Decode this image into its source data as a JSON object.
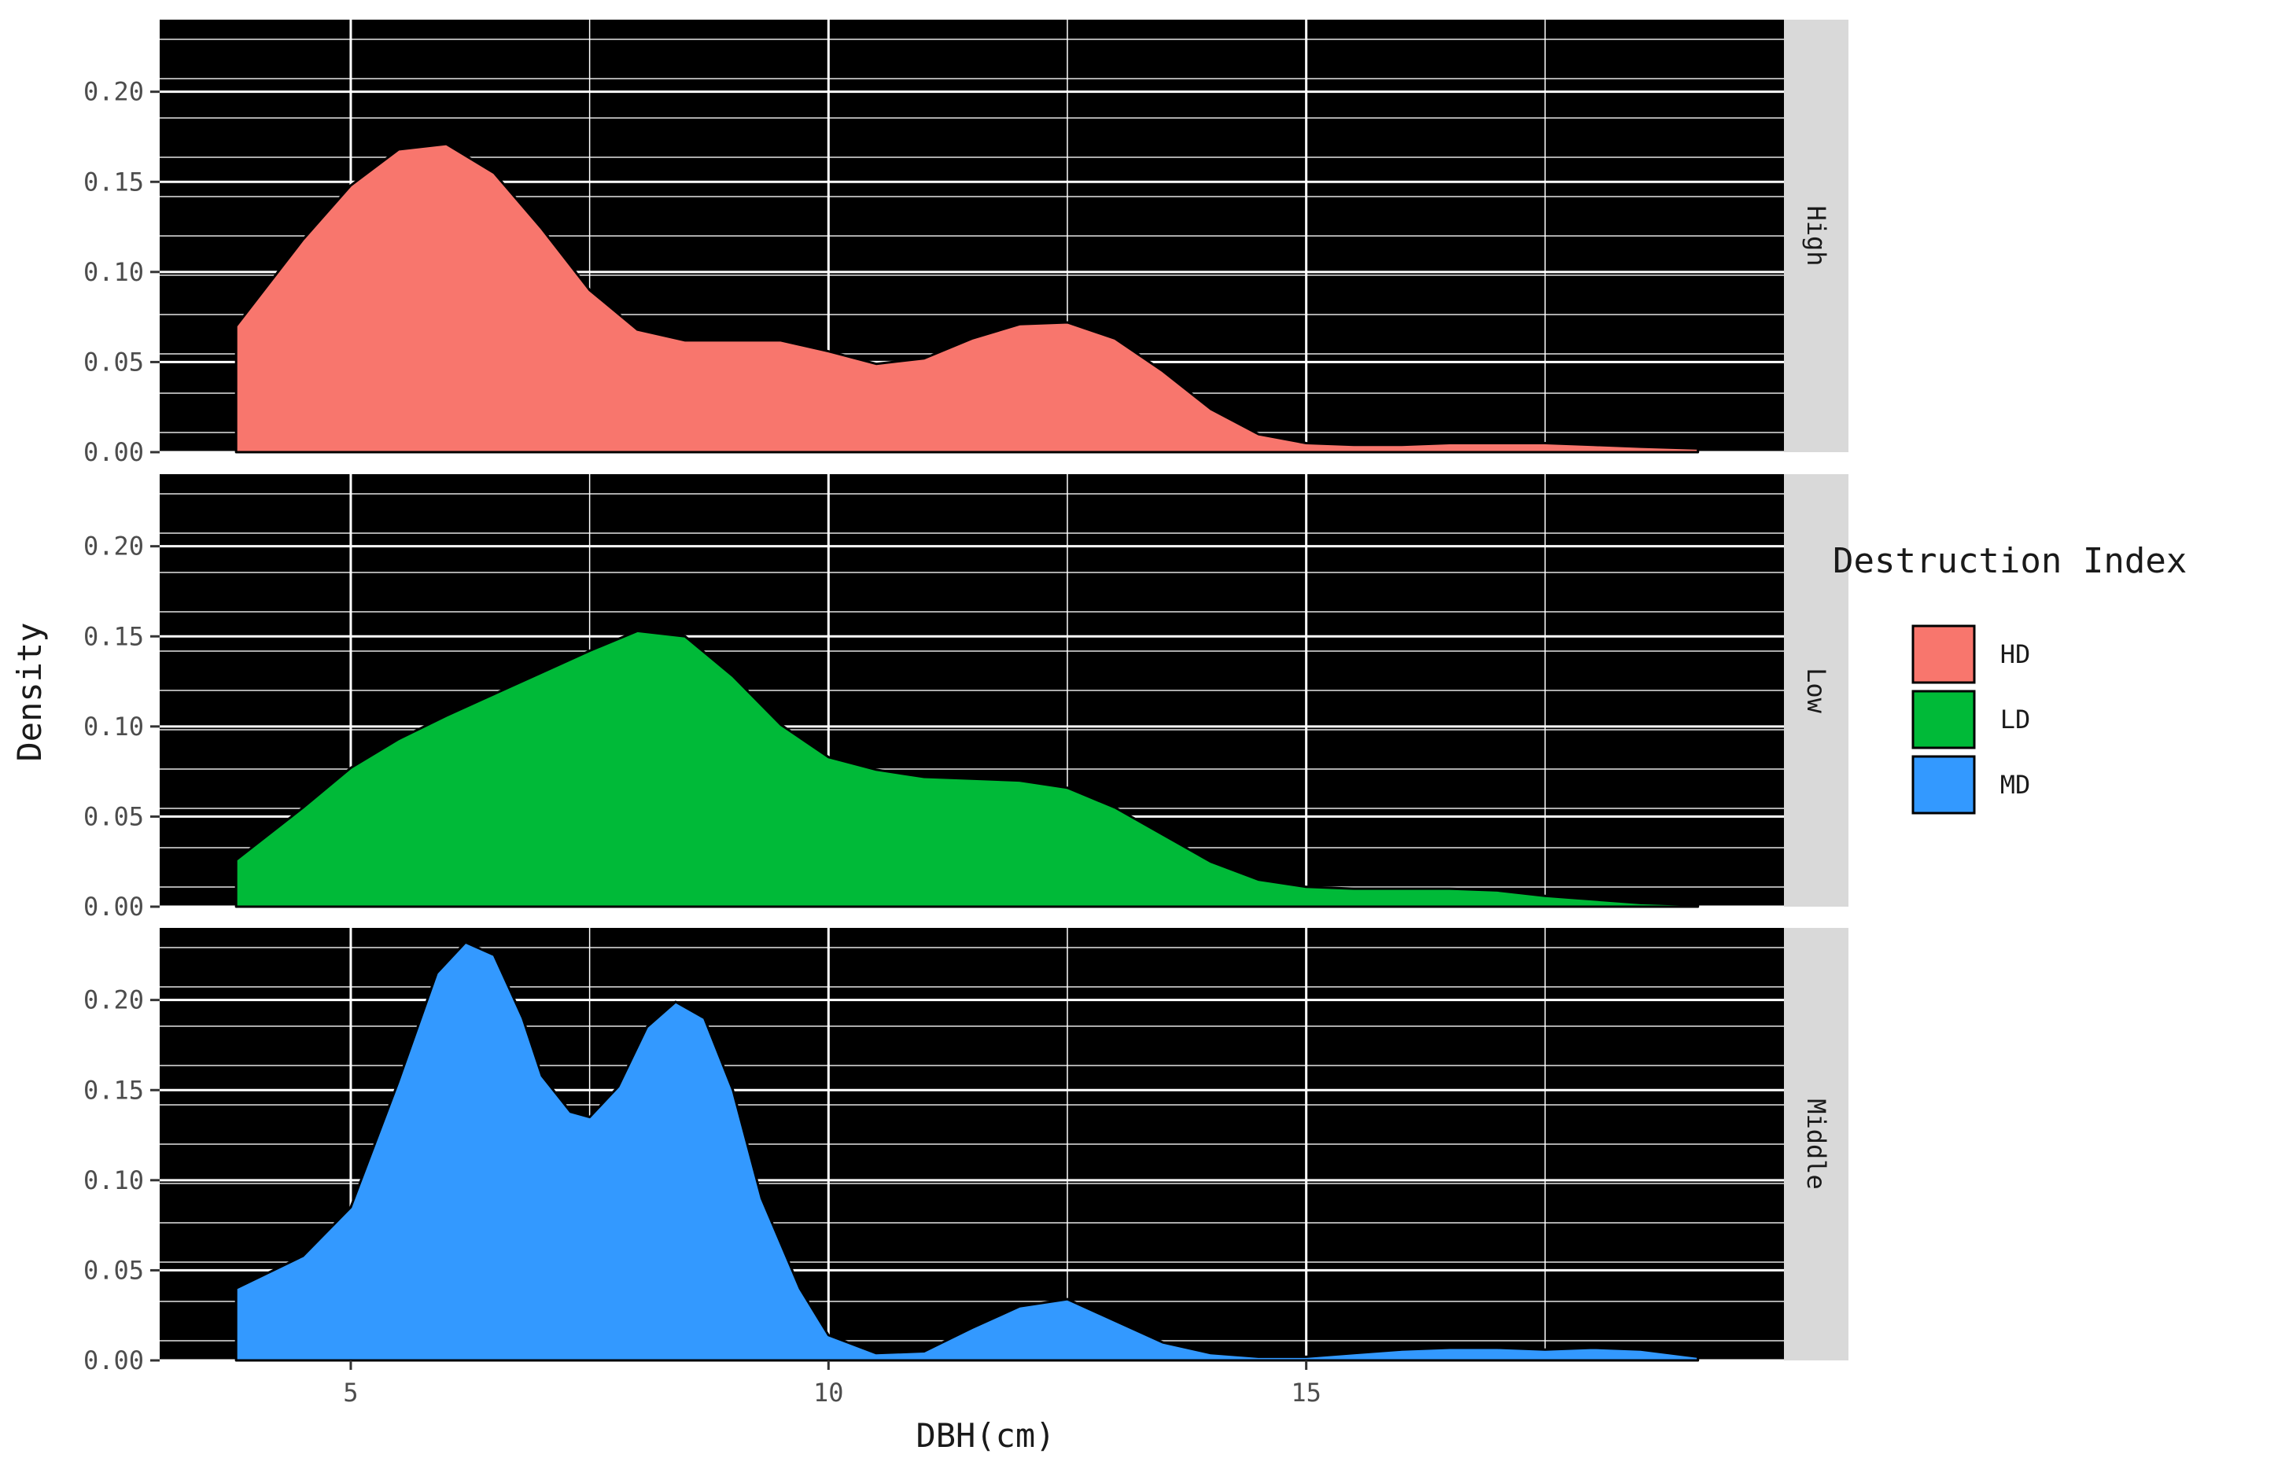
{
  "chart_data": {
    "type": "area",
    "xlabel": "DBH(cm)",
    "ylabel": "Density",
    "xlim": [
      3,
      20
    ],
    "ylim": [
      0,
      0.24
    ],
    "x_ticks": [
      5,
      10,
      15
    ],
    "x_tick_labels": [
      "5",
      "10",
      "15"
    ],
    "x_minor_ticks": [
      7.5,
      12.5,
      17.5
    ],
    "y_ticks": [
      0,
      0.05,
      0.1,
      0.15,
      0.2
    ],
    "y_tick_labels": [
      "0.00",
      "0.05",
      "0.10",
      "0.15",
      "0.20"
    ],
    "grid": true,
    "panel_background": "#000000",
    "grid_color": "#ffffff",
    "strip_background": "#d9d9d9",
    "legend": {
      "title": "Destruction Index",
      "position": "right",
      "items": [
        {
          "label": "HD",
          "color": "#f8766d"
        },
        {
          "label": "LD",
          "color": "#00ba38"
        },
        {
          "label": "MD",
          "color": "#3399ff"
        }
      ]
    },
    "facets": [
      {
        "label": "High",
        "series": "HD",
        "color": "#f8766d",
        "x": [
          3.8,
          4.5,
          5.0,
          5.5,
          6.0,
          6.5,
          7.0,
          7.5,
          8.0,
          8.5,
          9.0,
          9.5,
          10.0,
          10.5,
          11.0,
          11.5,
          12.0,
          12.5,
          13.0,
          13.5,
          14.0,
          14.5,
          15.0,
          15.5,
          16.0,
          16.5,
          17.0,
          17.5,
          18.0,
          18.5,
          19.1
        ],
        "y": [
          0.07,
          0.118,
          0.148,
          0.168,
          0.171,
          0.155,
          0.124,
          0.09,
          0.068,
          0.062,
          0.062,
          0.062,
          0.056,
          0.049,
          0.052,
          0.063,
          0.071,
          0.072,
          0.063,
          0.045,
          0.024,
          0.01,
          0.005,
          0.004,
          0.004,
          0.005,
          0.005,
          0.005,
          0.004,
          0.003,
          0.002
        ]
      },
      {
        "label": "Low",
        "series": "LD",
        "color": "#00ba38",
        "x": [
          3.8,
          4.5,
          5.0,
          5.5,
          6.0,
          6.5,
          7.0,
          7.5,
          8.0,
          8.5,
          9.0,
          9.5,
          10.0,
          10.5,
          11.0,
          11.5,
          12.0,
          12.5,
          13.0,
          13.5,
          14.0,
          14.5,
          15.0,
          15.5,
          16.0,
          16.5,
          17.0,
          17.5,
          18.0,
          18.5,
          19.1
        ],
        "y": [
          0.026,
          0.055,
          0.077,
          0.093,
          0.106,
          0.118,
          0.13,
          0.142,
          0.153,
          0.15,
          0.128,
          0.101,
          0.083,
          0.076,
          0.072,
          0.071,
          0.07,
          0.066,
          0.055,
          0.04,
          0.025,
          0.015,
          0.011,
          0.01,
          0.01,
          0.01,
          0.009,
          0.006,
          0.004,
          0.002,
          0.001
        ]
      },
      {
        "label": "Middle",
        "series": "MD",
        "color": "#3399ff",
        "x": [
          3.8,
          4.5,
          5.0,
          5.5,
          5.9,
          6.2,
          6.5,
          6.8,
          7.0,
          7.3,
          7.5,
          7.8,
          8.1,
          8.4,
          8.7,
          9.0,
          9.3,
          9.7,
          10.0,
          10.5,
          11.0,
          11.5,
          12.0,
          12.5,
          13.0,
          13.5,
          14.0,
          14.5,
          15.0,
          15.5,
          16.0,
          16.5,
          17.0,
          17.5,
          18.0,
          18.5,
          19.1
        ],
        "y": [
          0.04,
          0.058,
          0.085,
          0.155,
          0.215,
          0.232,
          0.225,
          0.19,
          0.158,
          0.138,
          0.135,
          0.152,
          0.185,
          0.199,
          0.19,
          0.15,
          0.09,
          0.04,
          0.014,
          0.004,
          0.005,
          0.018,
          0.03,
          0.034,
          0.022,
          0.01,
          0.004,
          0.002,
          0.002,
          0.004,
          0.006,
          0.007,
          0.007,
          0.006,
          0.007,
          0.006,
          0.002
        ]
      }
    ]
  }
}
